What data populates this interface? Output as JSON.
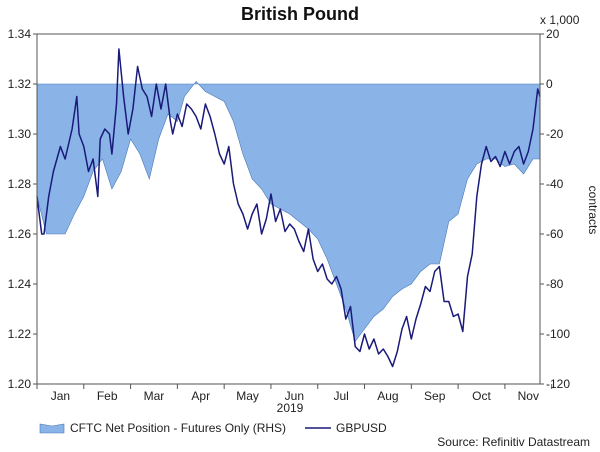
{
  "chart_data": {
    "type": "area",
    "title": "British Pound",
    "multiplier_label": "x 1,000",
    "year_label": "2019",
    "ylabel_right": "contracts",
    "ylabel_left": "",
    "source": "Source: Refinitiv Datastream",
    "xlim": [
      0,
      10.75
    ],
    "ylim_left": [
      1.2,
      1.34
    ],
    "ylim_right": [
      -120,
      20
    ],
    "yticks_left": [
      "1.20",
      "1.22",
      "1.24",
      "1.26",
      "1.28",
      "1.30",
      "1.32",
      "1.34"
    ],
    "yticks_right": [
      "-120",
      "-100",
      "-80",
      "-60",
      "-40",
      "-20",
      "0",
      "20"
    ],
    "months": [
      "Jan",
      "Feb",
      "Mar",
      "Apr",
      "May",
      "Jun",
      "Jul",
      "Aug",
      "Sep",
      "Oct",
      "Nov"
    ],
    "legend_placement": "bottom-left",
    "series": [
      {
        "name": "CFTC Net Position - Futures Only (RHS)",
        "kind": "area",
        "axis": "right",
        "color": "#8ab4e8",
        "x": [
          0.0,
          0.2,
          0.3,
          0.6,
          0.8,
          1.0,
          1.2,
          1.4,
          1.6,
          1.8,
          2.0,
          2.2,
          2.4,
          2.6,
          2.8,
          3.0,
          3.15,
          3.4,
          3.6,
          3.8,
          4.0,
          4.2,
          4.4,
          4.6,
          4.8,
          5.0,
          5.2,
          5.4,
          5.6,
          5.8,
          6.0,
          6.2,
          6.4,
          6.6,
          6.8,
          7.0,
          7.2,
          7.4,
          7.6,
          7.8,
          8.0,
          8.2,
          8.4,
          8.6,
          8.8,
          9.0,
          9.2,
          9.4,
          9.6,
          9.8,
          10.0,
          10.2,
          10.4,
          10.6,
          10.75
        ],
        "y": [
          -45,
          -60,
          -60,
          -60,
          -52,
          -45,
          -35,
          -30,
          -42,
          -35,
          -22,
          -28,
          -38,
          -22,
          -12,
          -15,
          -5,
          1,
          -3,
          -5,
          -7,
          -15,
          -28,
          -38,
          -42,
          -48,
          -50,
          -52,
          -55,
          -58,
          -62,
          -70,
          -80,
          -90,
          -103,
          -98,
          -93,
          -90,
          -85,
          -82,
          -80,
          -75,
          -72,
          -72,
          -55,
          -52,
          -38,
          -32,
          -30,
          -30,
          -33,
          -32,
          -36,
          -30,
          -30
        ]
      },
      {
        "name": "GBPUSD",
        "kind": "line",
        "axis": "left",
        "color": "#1a1a7a",
        "x": [
          0.0,
          0.1,
          0.15,
          0.25,
          0.35,
          0.5,
          0.6,
          0.75,
          0.85,
          0.9,
          1.0,
          1.1,
          1.2,
          1.3,
          1.35,
          1.45,
          1.55,
          1.6,
          1.7,
          1.75,
          1.85,
          1.95,
          2.05,
          2.15,
          2.25,
          2.35,
          2.45,
          2.55,
          2.65,
          2.75,
          2.85,
          2.9,
          3.0,
          3.1,
          3.2,
          3.3,
          3.4,
          3.5,
          3.6,
          3.7,
          3.8,
          3.9,
          4.0,
          4.1,
          4.2,
          4.3,
          4.4,
          4.5,
          4.6,
          4.7,
          4.8,
          4.9,
          5.0,
          5.1,
          5.2,
          5.3,
          5.4,
          5.5,
          5.6,
          5.7,
          5.8,
          5.9,
          6.0,
          6.1,
          6.2,
          6.3,
          6.4,
          6.5,
          6.6,
          6.7,
          6.8,
          6.9,
          7.0,
          7.1,
          7.2,
          7.3,
          7.4,
          7.5,
          7.6,
          7.7,
          7.8,
          7.9,
          8.0,
          8.1,
          8.2,
          8.3,
          8.4,
          8.5,
          8.6,
          8.7,
          8.8,
          8.9,
          9.0,
          9.1,
          9.2,
          9.3,
          9.4,
          9.5,
          9.6,
          9.7,
          9.8,
          9.9,
          10.0,
          10.1,
          10.2,
          10.3,
          10.4,
          10.5,
          10.6,
          10.7,
          10.75
        ],
        "y": [
          1.275,
          1.26,
          1.26,
          1.275,
          1.285,
          1.295,
          1.29,
          1.302,
          1.315,
          1.3,
          1.295,
          1.285,
          1.29,
          1.275,
          1.298,
          1.302,
          1.3,
          1.292,
          1.312,
          1.334,
          1.315,
          1.3,
          1.31,
          1.327,
          1.318,
          1.315,
          1.307,
          1.32,
          1.31,
          1.32,
          1.305,
          1.3,
          1.308,
          1.303,
          1.312,
          1.31,
          1.307,
          1.302,
          1.312,
          1.307,
          1.3,
          1.292,
          1.288,
          1.295,
          1.28,
          1.272,
          1.268,
          1.262,
          1.268,
          1.272,
          1.26,
          1.266,
          1.276,
          1.265,
          1.27,
          1.261,
          1.264,
          1.262,
          1.257,
          1.253,
          1.262,
          1.25,
          1.245,
          1.248,
          1.242,
          1.24,
          1.243,
          1.238,
          1.226,
          1.231,
          1.215,
          1.213,
          1.22,
          1.214,
          1.218,
          1.212,
          1.214,
          1.211,
          1.207,
          1.213,
          1.222,
          1.227,
          1.218,
          1.226,
          1.232,
          1.239,
          1.237,
          1.245,
          1.247,
          1.233,
          1.233,
          1.227,
          1.228,
          1.221,
          1.243,
          1.252,
          1.275,
          1.288,
          1.295,
          1.289,
          1.291,
          1.287,
          1.293,
          1.288,
          1.293,
          1.295,
          1.288,
          1.293,
          1.302,
          1.318,
          1.315
        ]
      }
    ]
  }
}
